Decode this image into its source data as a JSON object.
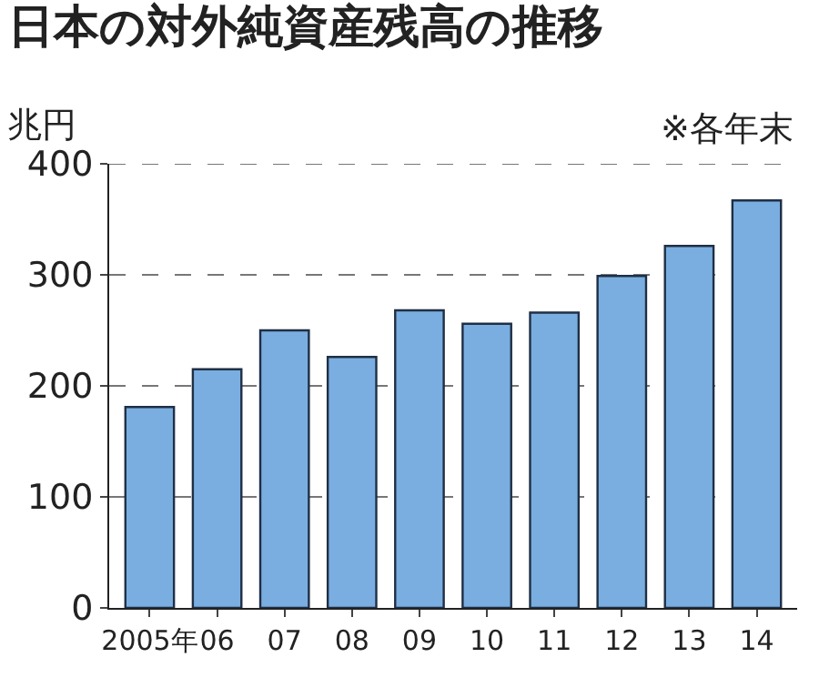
{
  "chart_data": {
    "type": "bar",
    "title": "日本の対外純資産残高の推移",
    "ylabel": "兆円",
    "annotations": [
      "※各年末"
    ],
    "categories": [
      "2005年",
      "06",
      "07",
      "08",
      "09",
      "10",
      "11",
      "12",
      "13",
      "14"
    ],
    "values": [
      181,
      215,
      250,
      226,
      268,
      256,
      266,
      299,
      326,
      367
    ],
    "color": "#7aaee0",
    "ylim": [
      0,
      400
    ],
    "yticks": [
      0,
      100,
      200,
      300,
      400
    ],
    "grid": "y"
  }
}
